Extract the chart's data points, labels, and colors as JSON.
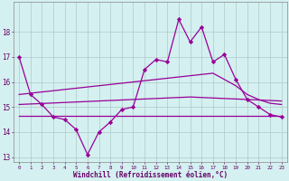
{
  "xlabel": "Windchill (Refroidissement éolien,°C)",
  "background_color": "#d4f0f0",
  "grid_color": "#b0c8c8",
  "line_color": "#990099",
  "hours": [
    0,
    1,
    2,
    3,
    4,
    5,
    6,
    7,
    8,
    9,
    10,
    11,
    12,
    13,
    14,
    15,
    16,
    17,
    18,
    19,
    20,
    21,
    22,
    23
  ],
  "windchill": [
    17.0,
    15.5,
    15.1,
    14.6,
    14.5,
    14.1,
    13.1,
    14.0,
    14.4,
    14.9,
    15.0,
    16.5,
    16.9,
    16.8,
    18.5,
    17.6,
    18.2,
    16.8,
    17.1,
    16.1,
    15.3,
    15.0,
    14.7,
    14.6
  ],
  "upper_band": [
    15.5,
    15.55,
    15.6,
    15.65,
    15.7,
    15.75,
    15.8,
    15.85,
    15.9,
    15.95,
    16.0,
    16.05,
    16.1,
    16.15,
    16.2,
    16.25,
    16.3,
    16.35,
    16.1,
    15.85,
    15.5,
    15.3,
    15.15,
    15.1
  ],
  "mid_band": [
    15.1,
    15.12,
    15.14,
    15.16,
    15.18,
    15.2,
    15.22,
    15.24,
    15.26,
    15.28,
    15.3,
    15.32,
    15.34,
    15.36,
    15.38,
    15.4,
    15.38,
    15.36,
    15.34,
    15.32,
    15.3,
    15.28,
    15.26,
    15.24
  ],
  "flat_line": [
    14.65,
    14.65,
    14.65,
    14.65,
    14.65,
    14.65,
    14.65,
    14.65,
    14.65,
    14.65,
    14.65,
    14.65,
    14.65,
    14.65,
    14.65,
    14.65,
    14.65,
    14.65,
    14.65,
    14.65,
    14.65,
    14.65,
    14.65,
    14.65
  ],
  "ylim": [
    12.8,
    19.2
  ],
  "yticks": [
    13,
    14,
    15,
    16,
    17,
    18
  ],
  "xtick_labels": [
    "0",
    "1",
    "2",
    "3",
    "4",
    "5",
    "6",
    "7",
    "8",
    "9",
    "10",
    "11",
    "12",
    "13",
    "14",
    "15",
    "16",
    "17",
    "18",
    "19",
    "20",
    "21",
    "22",
    "23"
  ]
}
